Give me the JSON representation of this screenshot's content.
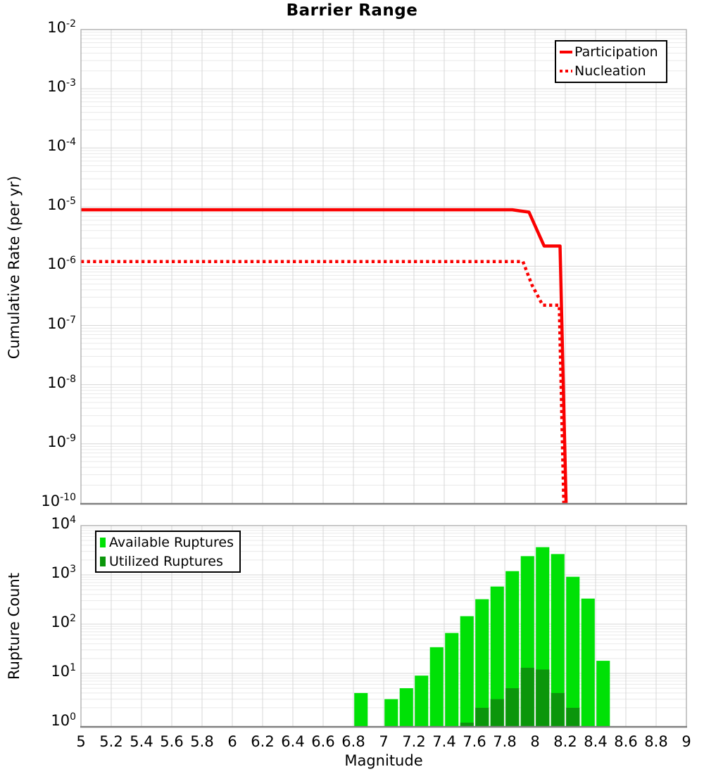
{
  "title": "Barrier Range",
  "colors": {
    "line_red": "#fa0000",
    "available_green": "#00e106",
    "utilized_green": "#0b960b",
    "grid_minor": "#eaeaea",
    "grid_major": "#d7d7d7",
    "frame": "#aaaaaa",
    "frame_dark": "#808080",
    "legend_border": "#000000",
    "text": "#000000",
    "background": "#ffffff"
  },
  "chart_data": [
    {
      "type": "line",
      "title": "Barrier Range",
      "ylabel": "Cumulative Rate (per yr)",
      "xlabel": "",
      "xlim": [
        5,
        9
      ],
      "ylim": [
        1e-10,
        0.01
      ],
      "grid": true,
      "legend_position": "top-right",
      "y_ticks": [
        "-2",
        "-3",
        "-4",
        "-5",
        "-6",
        "-7",
        "-8",
        "-9",
        "-10"
      ],
      "series": [
        {
          "name": "Participation",
          "style": "solid",
          "color_key": "line_red",
          "points": [
            [
              5.0,
              9e-06
            ],
            [
              7.85,
              9e-06
            ],
            [
              7.96,
              8.2e-06
            ],
            [
              8.06,
              2.2e-06
            ],
            [
              8.165,
              2.2e-06
            ],
            [
              8.205,
              1e-10
            ]
          ]
        },
        {
          "name": "Nucleation",
          "style": "dotted",
          "color_key": "line_red",
          "points": [
            [
              5.0,
              1.2e-06
            ],
            [
              7.92,
              1.2e-06
            ],
            [
              7.98,
              4.8e-07
            ],
            [
              8.05,
              2.2e-07
            ],
            [
              8.16,
              2.2e-07
            ],
            [
              8.19,
              1e-10
            ]
          ]
        }
      ]
    },
    {
      "type": "bar",
      "title": "",
      "ylabel": "Rupture Count",
      "xlabel": "Magnitude",
      "xlim": [
        5,
        9
      ],
      "ylim": [
        1,
        10000
      ],
      "grid": true,
      "legend_position": "top-left",
      "bin_width": 0.1,
      "y_ticks": [
        "0",
        "1",
        "2",
        "3",
        "4"
      ],
      "x_ticks": [
        "5",
        "5.2",
        "5.4",
        "5.6",
        "5.8",
        "6",
        "6.2",
        "6.4",
        "6.6",
        "6.8",
        "7",
        "7.2",
        "7.4",
        "7.6",
        "7.8",
        "8",
        "8.2",
        "8.4",
        "8.6",
        "8.8",
        "9"
      ],
      "series": [
        {
          "name": "Available Ruptures",
          "color_key": "available_green",
          "x": [
            6.85,
            7.05,
            7.15,
            7.25,
            7.35,
            7.45,
            7.55,
            7.65,
            7.75,
            7.85,
            7.95,
            8.05,
            8.15,
            8.25,
            8.35,
            8.45
          ],
          "values": [
            4,
            3,
            5,
            9,
            34,
            66,
            145,
            320,
            580,
            1190,
            2400,
            3650,
            2650,
            915,
            330,
            18
          ]
        },
        {
          "name": "Utilized Ruptures",
          "color_key": "utilized_green",
          "x": [
            7.55,
            7.65,
            7.75,
            7.85,
            7.95,
            8.05,
            8.15,
            8.25
          ],
          "values": [
            1,
            2,
            3,
            5,
            13,
            12,
            4,
            2
          ]
        }
      ]
    }
  ]
}
